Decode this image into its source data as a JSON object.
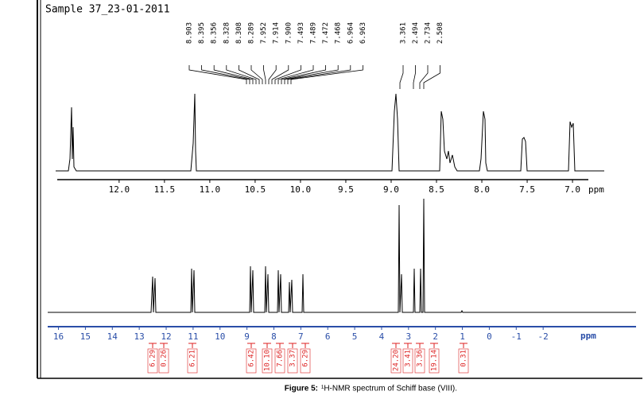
{
  "title": "Sample 37_23-01-2011",
  "peak_labels": [
    "8.903",
    "8.395",
    "8.356",
    "8.328",
    "8.308",
    "8.289",
    "7.952",
    "7.914",
    "7.900",
    "7.493",
    "7.489",
    "7.472",
    "7.468",
    "6.964",
    "6.963"
  ],
  "peak_labels_right": [
    "3.361",
    "2.494",
    "2.734",
    "2.508"
  ],
  "inset": {
    "xlim": [
      12.7,
      6.65
    ],
    "xticks": [
      {
        "value": 12,
        "label": "12.0"
      },
      11.5,
      {
        "value": 11,
        "label": "11.0"
      },
      10.5,
      {
        "value": 10,
        "label": "10.0"
      },
      9.5,
      {
        "value": 9,
        "label": "9.0"
      },
      8.5,
      {
        "value": 8,
        "label": "8.0"
      },
      7.5,
      {
        "value": 7,
        "label": "7.0"
      }
    ],
    "unit": "ppm"
  },
  "main": {
    "xlim": [
      16.4,
      -5.45
    ],
    "xticks": [
      16,
      15,
      14,
      13,
      12,
      11,
      10,
      9,
      8,
      7,
      6,
      5,
      4,
      3,
      2,
      1,
      0,
      -1,
      -2
    ],
    "unit": "ppm"
  },
  "integrals": [
    "6.29",
    "0.26",
    "6.21",
    "6.42",
    "10.10",
    "7.66",
    "3.37",
    "6.29",
    "24.20",
    "3.41",
    "3.36",
    "19.14",
    "0.31"
  ],
  "caption": {
    "label": "Figure 5:",
    "text": "¹H-NMR spectrum of Schiff base (VIII)."
  }
}
